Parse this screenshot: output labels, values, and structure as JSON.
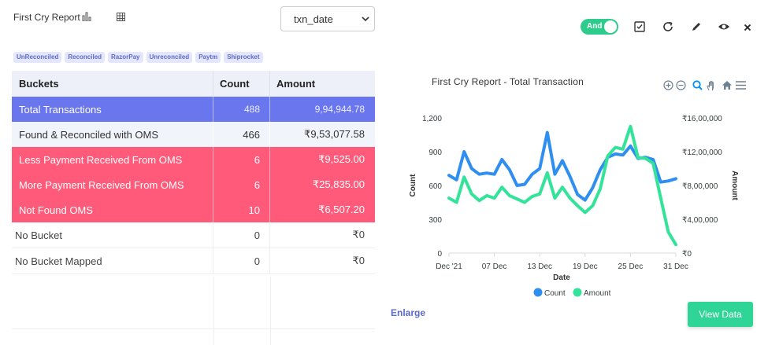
{
  "header": {
    "report_title": "First Cry Report",
    "date_field": "txn_date",
    "toggle_label": "And"
  },
  "tags": [
    "UnReconciled",
    "Reconciled",
    "RazorPay",
    "Unreconciled",
    "Paytm",
    "Shiprocket"
  ],
  "table": {
    "columns": [
      "Buckets",
      "Count",
      "Amount"
    ],
    "rows": [
      {
        "bucket": "Total  Transactions",
        "count": "488",
        "amount": "9,94,944.78"
      },
      {
        "bucket": "Found & Reconciled with OMS",
        "count": "466",
        "amount": "₹9,53,077.58"
      },
      {
        "bucket": "Less Payment Received From OMS",
        "count": "6",
        "amount": "₹9,525.00"
      },
      {
        "bucket": "More Payment Received From OMS",
        "count": "6",
        "amount": "₹25,835.00"
      },
      {
        "bucket": "Not Found OMS",
        "count": "10",
        "amount": "₹6,507.20"
      },
      {
        "bucket": "No Bucket",
        "count": "0",
        "amount": "₹0"
      },
      {
        "bucket": "No Bucket Mapped",
        "count": "0",
        "amount": "₹0"
      }
    ]
  },
  "chart_data": {
    "type": "line",
    "title": "First Cry Report - Total Transaction",
    "xlabel": "Date",
    "ylabel_left": "Count",
    "ylabel_right": "Amount",
    "x_tick_labels": [
      "Dec '21",
      "07 Dec",
      "13 Dec",
      "19 Dec",
      "25 Dec",
      "31 Dec"
    ],
    "left_ticks": [
      "0",
      "300",
      "600",
      "900",
      "1,200"
    ],
    "right_ticks": [
      "₹0",
      "₹4,00,000",
      "₹8,00,000",
      "₹12,00,000",
      "₹16,00,000"
    ],
    "ylim_left": [
      0,
      1200
    ],
    "ylim_right": [
      0,
      1600000
    ],
    "x": [
      "2021-12-01",
      "2021-12-02",
      "2021-12-03",
      "2021-12-04",
      "2021-12-05",
      "2021-12-06",
      "2021-12-07",
      "2021-12-08",
      "2021-12-09",
      "2021-12-10",
      "2021-12-11",
      "2021-12-12",
      "2021-12-13",
      "2021-12-14",
      "2021-12-15",
      "2021-12-16",
      "2021-12-17",
      "2021-12-18",
      "2021-12-19",
      "2021-12-20",
      "2021-12-21",
      "2021-12-22",
      "2021-12-23",
      "2021-12-24",
      "2021-12-25",
      "2021-12-26",
      "2021-12-27",
      "2021-12-28",
      "2021-12-29",
      "2021-12-30",
      "2021-12-31"
    ],
    "series": [
      {
        "name": "Count",
        "axis": "left",
        "color": "#2e8ff0",
        "values": [
          690,
          650,
          900,
          750,
          700,
          710,
          700,
          830,
          740,
          600,
          610,
          700,
          750,
          1070,
          700,
          820,
          680,
          520,
          470,
          580,
          740,
          850,
          880,
          870,
          950,
          840,
          850,
          830,
          630,
          640,
          660
        ]
      },
      {
        "name": "Amount",
        "axis": "right",
        "color": "#33e39a",
        "values": [
          650000,
          600000,
          900000,
          700000,
          620000,
          680000,
          650000,
          780000,
          680000,
          640000,
          600000,
          670000,
          700000,
          950000,
          650000,
          780000,
          650000,
          560000,
          480000,
          560000,
          760000,
          1150000,
          1250000,
          1230000,
          1500000,
          1130000,
          1120000,
          1060000,
          650000,
          250000,
          100000
        ]
      }
    ],
    "legend": [
      "Count",
      "Amount"
    ],
    "legend_position": "bottom"
  },
  "footer": {
    "enlarge_label": "Enlarge",
    "view_data_label": "View Data"
  },
  "colors": {
    "accent": "#6976ee",
    "danger": "#ff5a7a",
    "success": "#2fd596"
  }
}
